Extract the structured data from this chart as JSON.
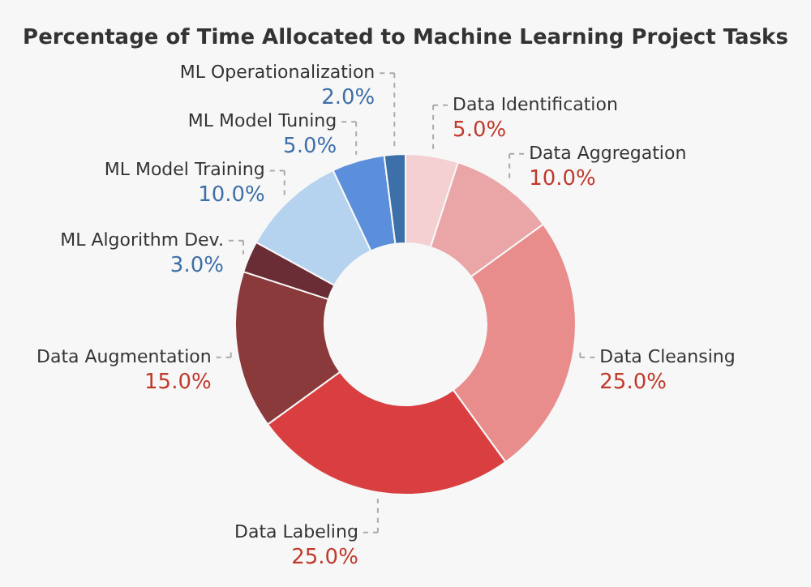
{
  "chart_data": {
    "type": "donut",
    "title": "Percentage of Time Allocated to Machine Learning Project Tasks",
    "categories": [
      "Data Identification",
      "Data Aggregation",
      "Data Cleansing",
      "Data Labeling",
      "Data Augmentation",
      "ML Algorithm Dev.",
      "ML Model Training",
      "ML Model Tuning",
      "ML Operationalization"
    ],
    "values": [
      5,
      10,
      25,
      25,
      15,
      3,
      10,
      5,
      2
    ],
    "value_labels": [
      "5.0%",
      "10.0%",
      "25.0%",
      "25.0%",
      "15.0%",
      "3.0%",
      "10.0%",
      "5.0%",
      "2.0%"
    ],
    "colors": [
      "#f4d0d2",
      "#eaa5a6",
      "#e88c8c",
      "#d93f40",
      "#8b3a3c",
      "#6b2d35",
      "#b5d3ee",
      "#5b8fdc",
      "#3d6fa8"
    ],
    "legend": false
  }
}
